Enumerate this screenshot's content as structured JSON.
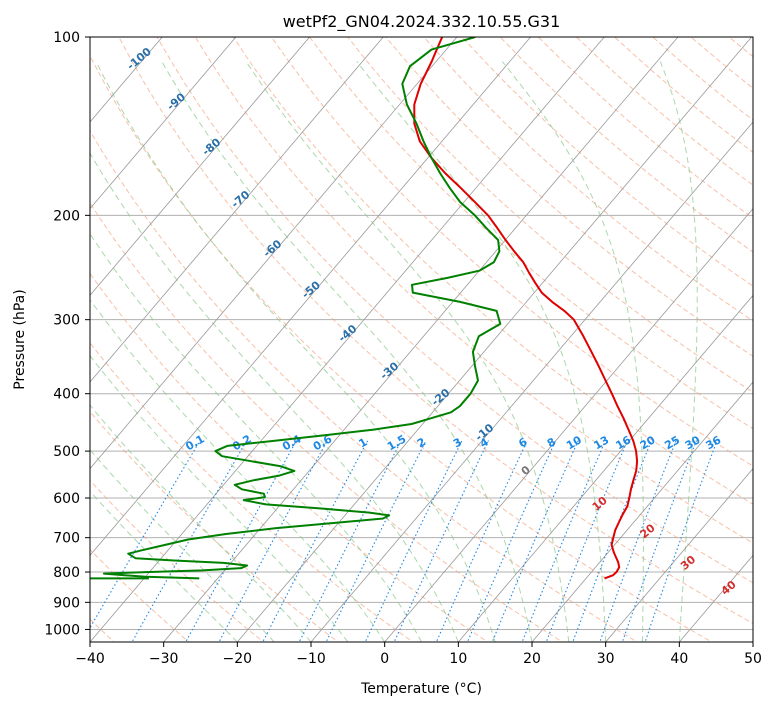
{
  "chart_data": {
    "type": "line",
    "title": "wetPf2_GN04.2024.332.10.55.G31",
    "xlabel": "Temperature (°C)",
    "ylabel": "Pressure (hPa)",
    "xlim": [
      -40,
      50
    ],
    "ylim": [
      1050,
      100
    ],
    "y_scale": "log",
    "skew": true,
    "grid": true,
    "x_ticks": [
      -40,
      -30,
      -20,
      -10,
      0,
      10,
      20,
      30,
      40,
      50
    ],
    "x_tick_labels": [
      "−40",
      "−30",
      "−20",
      "−10",
      "0",
      "10",
      "20",
      "30",
      "40",
      "50"
    ],
    "y_ticks": [
      100,
      200,
      300,
      400,
      500,
      600,
      700,
      800,
      900,
      1000
    ],
    "y_tick_labels": [
      "100",
      "200",
      "300",
      "400",
      "500",
      "600",
      "700",
      "800",
      "900",
      "1000"
    ],
    "isotherm_labels": [
      "-100",
      "-90",
      "-80",
      "-70",
      "-60",
      "-50",
      "-40",
      "-30",
      "-20",
      "-10",
      "0"
    ],
    "isotherm_label_values": [
      -100,
      -90,
      -80,
      -70,
      -60,
      -50,
      -40,
      -30,
      -20,
      -10,
      0
    ],
    "mixing_ratio_labels": [
      "0.1",
      "0.2",
      "0.4",
      "0.6",
      "1",
      "1.5",
      "2",
      "3",
      "4",
      "6",
      "8",
      "10",
      "13",
      "16",
      "20",
      "25",
      "30",
      "36"
    ],
    "mixing_ratio_values": [
      0.1,
      0.2,
      0.4,
      0.6,
      1,
      1.5,
      2,
      3,
      4,
      6,
      8,
      10,
      13,
      16,
      20,
      25,
      30,
      36
    ],
    "moist_adiabat_labels": [
      "10",
      "20",
      "30",
      "40"
    ],
    "colors": {
      "temperature": "#e00000",
      "dewpoint": "#008000",
      "isotherm": "#999999",
      "isotherm_label": "#2b6fa8",
      "dry_adiabat": "#f4a582",
      "moist_adiabat": "#8fc98f",
      "mixing_ratio": "#1e88e5",
      "moist_label": "#d32f2f",
      "zero_label": "#777777"
    },
    "series": [
      {
        "name": "Temperature",
        "values": [
          [
            820,
            22.5
          ],
          [
            810,
            23.3
          ],
          [
            800,
            23.4
          ],
          [
            785,
            23.2
          ],
          [
            770,
            22.5
          ],
          [
            755,
            21.6
          ],
          [
            740,
            20.7
          ],
          [
            720,
            19.6
          ],
          [
            700,
            19.0
          ],
          [
            680,
            18.4
          ],
          [
            660,
            18.0
          ],
          [
            640,
            17.6
          ],
          [
            620,
            17.3
          ],
          [
            600,
            16.6
          ],
          [
            580,
            15.8
          ],
          [
            560,
            15.1
          ],
          [
            540,
            14.4
          ],
          [
            520,
            13.4
          ],
          [
            500,
            12.1
          ],
          [
            480,
            10.5
          ],
          [
            460,
            8.6
          ],
          [
            440,
            6.6
          ],
          [
            420,
            4.4
          ],
          [
            400,
            2.2
          ],
          [
            380,
            -0.2
          ],
          [
            360,
            -2.7
          ],
          [
            340,
            -5.4
          ],
          [
            320,
            -8.3
          ],
          [
            300,
            -11.5
          ],
          [
            290,
            -13.8
          ],
          [
            280,
            -16.5
          ],
          [
            270,
            -19.0
          ],
          [
            260,
            -21.0
          ],
          [
            250,
            -23.0
          ],
          [
            240,
            -25.0
          ],
          [
            230,
            -27.5
          ],
          [
            220,
            -30.0
          ],
          [
            210,
            -32.5
          ],
          [
            200,
            -35.2
          ],
          [
            190,
            -38.5
          ],
          [
            180,
            -42.0
          ],
          [
            170,
            -45.8
          ],
          [
            160,
            -49.5
          ],
          [
            150,
            -53.0
          ],
          [
            140,
            -55.8
          ],
          [
            130,
            -58.0
          ],
          [
            120,
            -59.5
          ],
          [
            110,
            -60.6
          ],
          [
            105,
            -61.3
          ],
          [
            100,
            -62.0
          ]
        ]
      },
      {
        "name": "Dewpoint",
        "values": [
          [
            820,
            -32.5
          ],
          [
            815,
            -40.0
          ],
          [
            810,
            -43.0
          ],
          [
            805,
            -46.0
          ],
          [
            800,
            -40.0
          ],
          [
            795,
            -33.0
          ],
          [
            788,
            -28.0
          ],
          [
            780,
            -27.5
          ],
          [
            772,
            -31.0
          ],
          [
            765,
            -38.0
          ],
          [
            758,
            -43.5
          ],
          [
            745,
            -45.0
          ],
          [
            735,
            -43.5
          ],
          [
            720,
            -41.0
          ],
          [
            705,
            -38.5
          ],
          [
            690,
            -34.0
          ],
          [
            675,
            -28.0
          ],
          [
            660,
            -20.0
          ],
          [
            650,
            -14.5
          ],
          [
            642,
            -14.0
          ],
          [
            635,
            -17.0
          ],
          [
            625,
            -24.0
          ],
          [
            615,
            -32.0
          ],
          [
            605,
            -35.5
          ],
          [
            598,
            -33.0
          ],
          [
            590,
            -33.5
          ],
          [
            580,
            -37.0
          ],
          [
            570,
            -38.5
          ],
          [
            560,
            -36.5
          ],
          [
            550,
            -33.5
          ],
          [
            540,
            -32.0
          ],
          [
            530,
            -34.5
          ],
          [
            520,
            -39.0
          ],
          [
            510,
            -43.5
          ],
          [
            500,
            -45.0
          ],
          [
            490,
            -44.0
          ],
          [
            480,
            -38.0
          ],
          [
            470,
            -32.0
          ],
          [
            460,
            -26.0
          ],
          [
            450,
            -21.5
          ],
          [
            440,
            -19.5
          ],
          [
            430,
            -17.5
          ],
          [
            420,
            -17.0
          ],
          [
            400,
            -17.0
          ],
          [
            380,
            -17.5
          ],
          [
            360,
            -19.5
          ],
          [
            340,
            -21.5
          ],
          [
            320,
            -22.5
          ],
          [
            305,
            -21.0
          ],
          [
            290,
            -23.0
          ],
          [
            280,
            -29.0
          ],
          [
            270,
            -36.5
          ],
          [
            262,
            -37.5
          ],
          [
            255,
            -33.5
          ],
          [
            248,
            -30.0
          ],
          [
            240,
            -29.0
          ],
          [
            230,
            -29.5
          ],
          [
            220,
            -31.0
          ],
          [
            210,
            -34.0
          ],
          [
            200,
            -37.0
          ],
          [
            190,
            -40.5
          ],
          [
            180,
            -43.5
          ],
          [
            170,
            -46.5
          ],
          [
            160,
            -49.5
          ],
          [
            150,
            -52.5
          ],
          [
            140,
            -55.5
          ],
          [
            130,
            -59.0
          ],
          [
            120,
            -62.0
          ],
          [
            112,
            -63.0
          ],
          [
            105,
            -62.0
          ],
          [
            100,
            -57.5
          ]
        ]
      }
    ],
    "extra_series": [
      {
        "name": "",
        "values": [
          [
            820,
            -42.0
          ],
          [
            820,
            -32.0
          ]
        ]
      }
    ]
  }
}
